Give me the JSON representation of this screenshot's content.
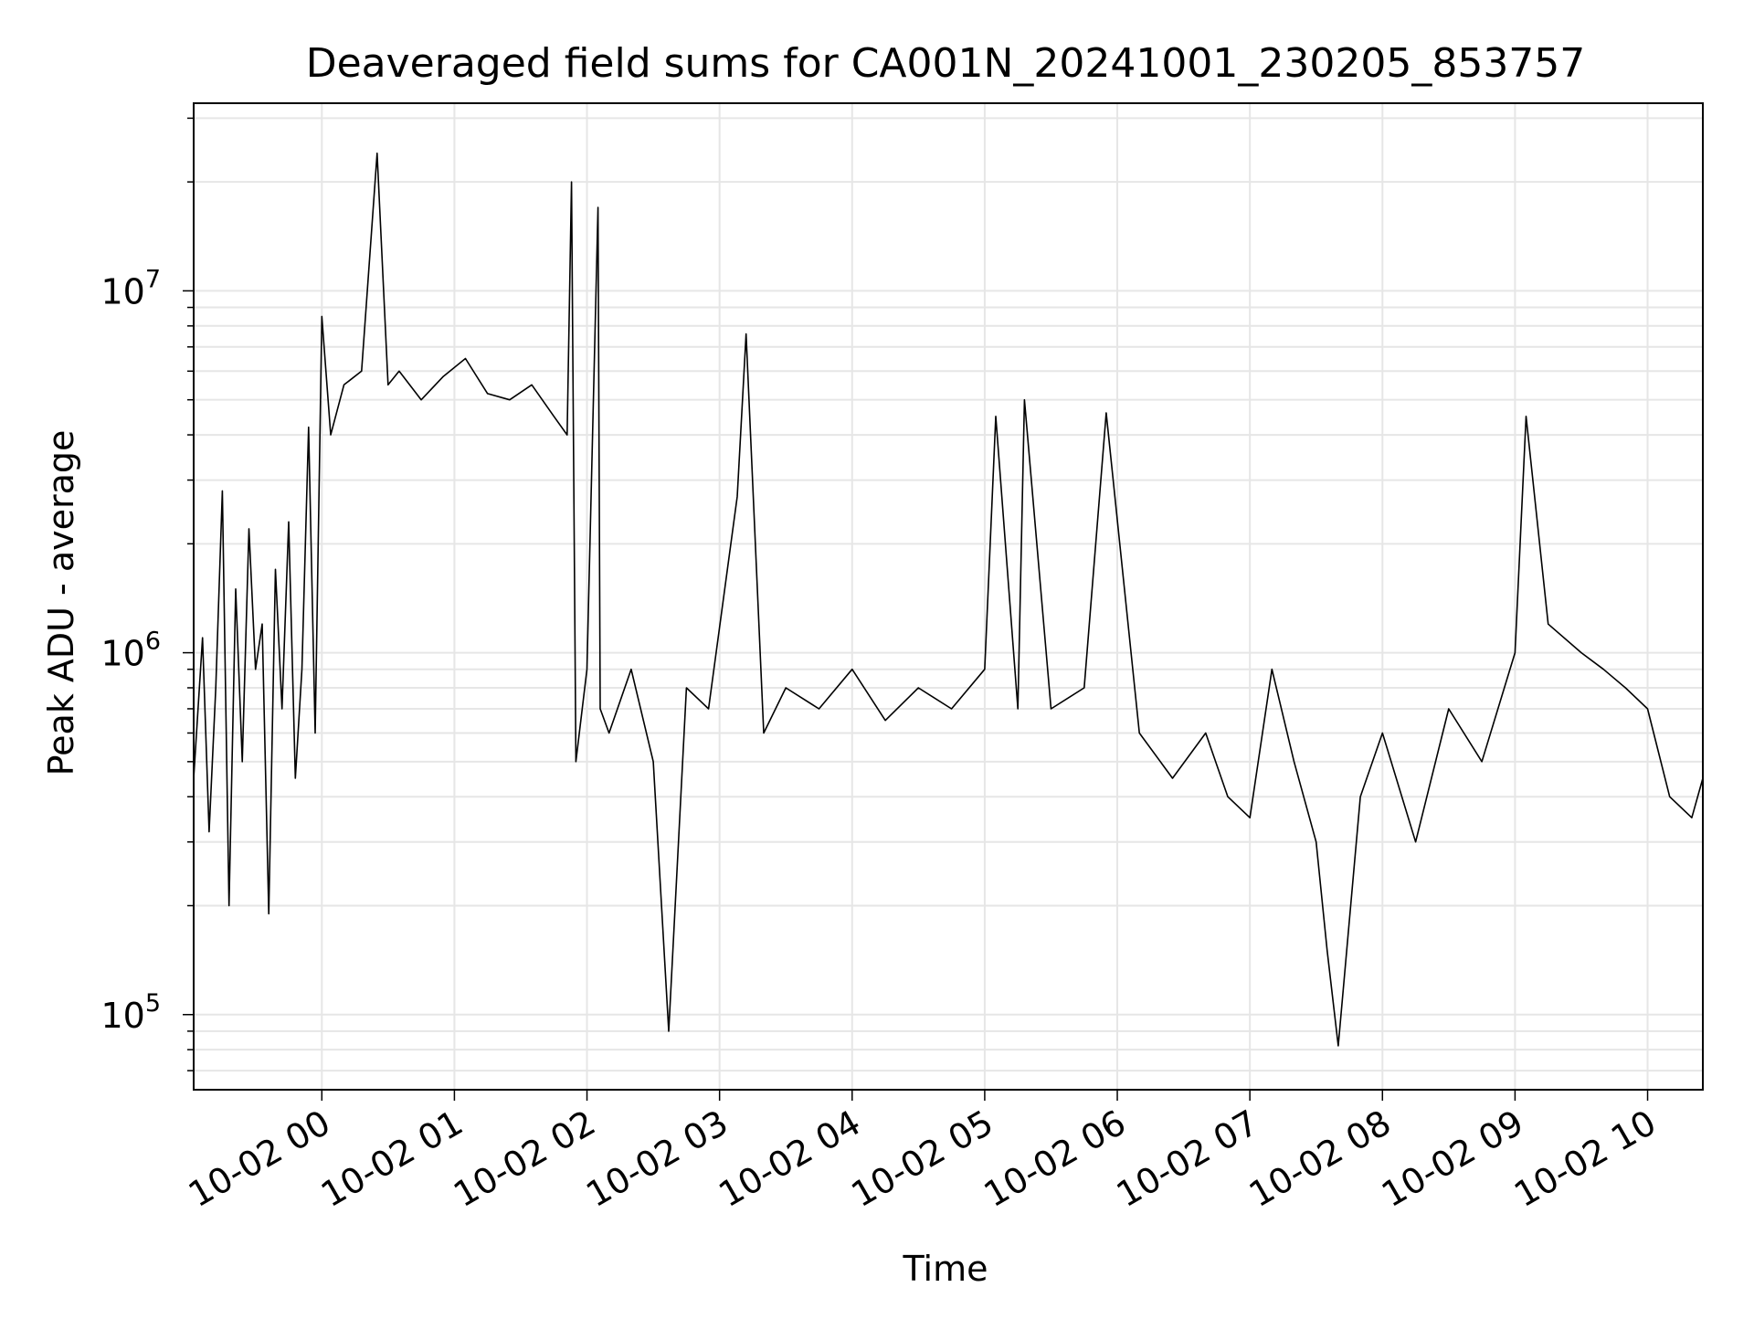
{
  "chart_data": {
    "type": "line",
    "title": "Deaveraged field sums for CA001N_20241001_230205_853757",
    "xlabel": "Time",
    "ylabel": "Peak ADU - average",
    "x_ticks": [
      "10-02 00",
      "10-02 01",
      "10-02 02",
      "10-02 03",
      "10-02 04",
      "10-02 05",
      "10-02 06",
      "10-02 07",
      "10-02 08",
      "10-02 09",
      "10-02 10"
    ],
    "y_ticks": [
      {
        "base": "10",
        "exp": "5",
        "value": 100000
      },
      {
        "base": "10",
        "exp": "6",
        "value": 1000000
      },
      {
        "base": "10",
        "exp": "7",
        "value": 10000000
      }
    ],
    "x_range": [
      "10-01 23:02",
      "10-02 10:25"
    ],
    "y_range": [
      62000,
      33000000
    ],
    "y_scale": "log",
    "grid": true,
    "line_color": "#000000",
    "grid_color": "#e6e6e6",
    "series": [
      {
        "x": [
          "10-01 23:02",
          "10-01 23:06",
          "10-01 23:09",
          "10-01 23:12",
          "10-01 23:15",
          "10-01 23:18",
          "10-01 23:21",
          "10-01 23:24",
          "10-01 23:27",
          "10-01 23:30",
          "10-01 23:33",
          "10-01 23:36",
          "10-01 23:39",
          "10-01 23:42",
          "10-01 23:45",
          "10-01 23:48",
          "10-01 23:51",
          "10-01 23:54",
          "10-01 23:57",
          "10-02 00:00",
          "10-02 00:04",
          "10-02 00:10",
          "10-02 00:18",
          "10-02 00:25",
          "10-02 00:30",
          "10-02 00:35",
          "10-02 00:45",
          "10-02 00:55",
          "10-02 01:05",
          "10-02 01:15",
          "10-02 01:25",
          "10-02 01:35",
          "10-02 01:45",
          "10-02 01:51",
          "10-02 01:53",
          "10-02 01:55",
          "10-02 02:00",
          "10-02 02:05",
          "10-02 02:06",
          "10-02 02:10",
          "10-02 02:20",
          "10-02 02:30",
          "10-02 02:37",
          "10-02 02:45",
          "10-02 02:55",
          "10-02 03:08",
          "10-02 03:12",
          "10-02 03:20",
          "10-02 03:30",
          "10-02 03:45",
          "10-02 04:00",
          "10-02 04:15",
          "10-02 04:30",
          "10-02 04:45",
          "10-02 05:00",
          "10-02 05:05",
          "10-02 05:15",
          "10-02 05:18",
          "10-02 05:30",
          "10-02 05:45",
          "10-02 05:55",
          "10-02 06:10",
          "10-02 06:25",
          "10-02 06:40",
          "10-02 06:50",
          "10-02 07:00",
          "10-02 07:10",
          "10-02 07:20",
          "10-02 07:30",
          "10-02 07:35",
          "10-02 07:40",
          "10-02 07:50",
          "10-02 08:00",
          "10-02 08:15",
          "10-02 08:30",
          "10-02 08:45",
          "10-02 09:00",
          "10-02 09:05",
          "10-02 09:15",
          "10-02 09:30",
          "10-02 09:40",
          "10-02 09:50",
          "10-02 10:00",
          "10-02 10:10",
          "10-02 10:20",
          "10-02 10:25"
        ],
        "y": [
          450000,
          1100000,
          320000,
          800000,
          2800000,
          200000,
          1500000,
          500000,
          2200000,
          900000,
          1200000,
          190000,
          1700000,
          700000,
          2300000,
          450000,
          900000,
          4200000,
          600000,
          8500000,
          4000000,
          5500000,
          6000000,
          24000000,
          5500000,
          6000000,
          5000000,
          5800000,
          6500000,
          5200000,
          5000000,
          5500000,
          4500000,
          4000000,
          20000000,
          500000,
          900000,
          17000000,
          700000,
          600000,
          900000,
          500000,
          90000,
          800000,
          700000,
          2700000,
          7600000,
          600000,
          800000,
          700000,
          900000,
          650000,
          800000,
          700000,
          900000,
          4500000,
          700000,
          5000000,
          700000,
          800000,
          4600000,
          600000,
          450000,
          600000,
          400000,
          350000,
          900000,
          500000,
          300000,
          150000,
          82000,
          400000,
          600000,
          300000,
          700000,
          500000,
          1000000,
          4500000,
          1200000,
          1000000,
          900000,
          800000,
          700000,
          400000,
          350000,
          450000
        ]
      }
    ]
  }
}
